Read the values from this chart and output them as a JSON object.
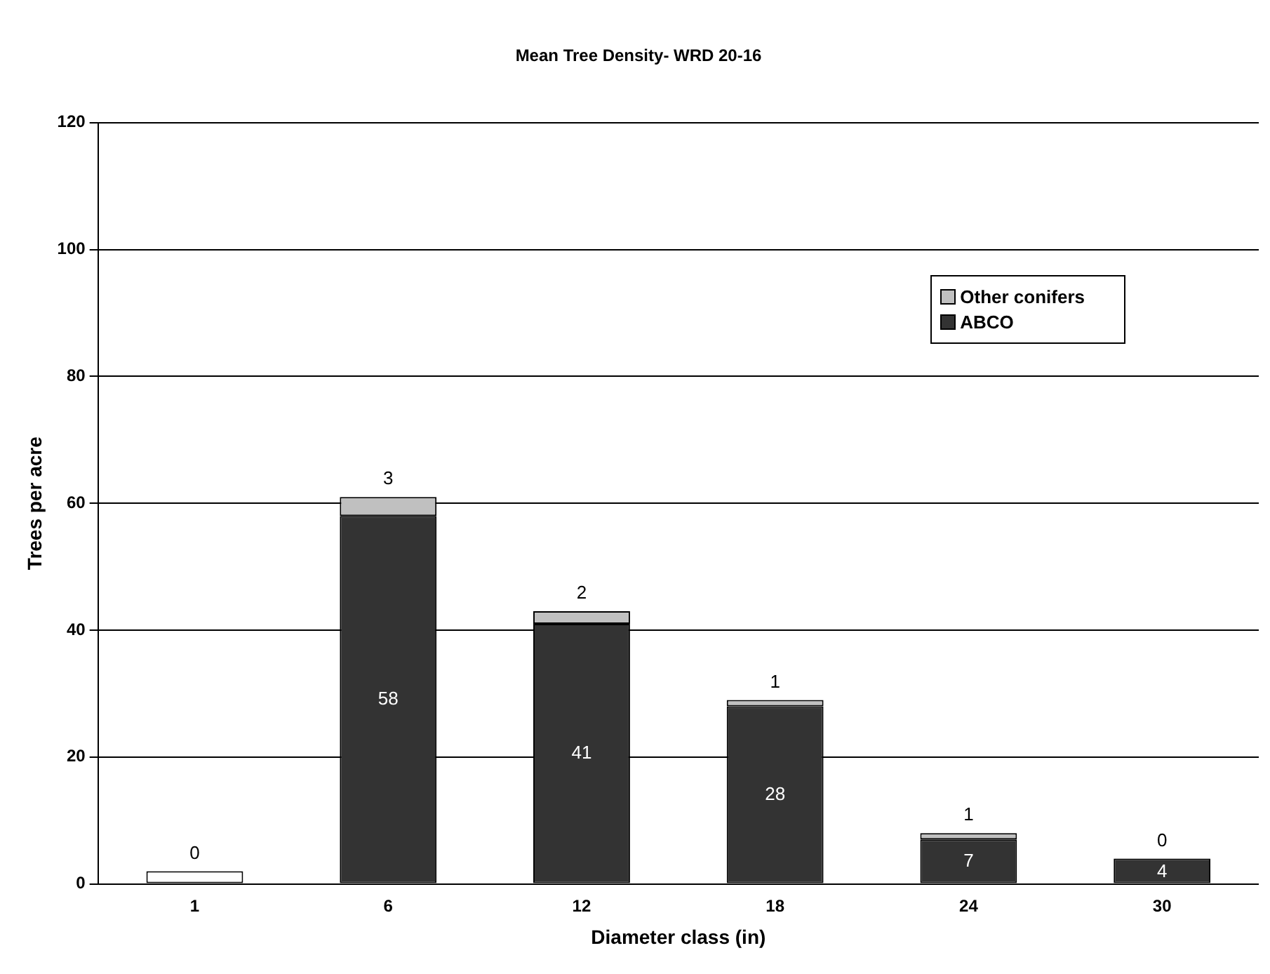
{
  "chart_data": {
    "type": "bar",
    "title": "Mean Tree Density- WRD 20-16",
    "xlabel": "Diameter class (in)",
    "ylabel": "Trees per acre",
    "categories": [
      "1",
      "6",
      "12",
      "18",
      "24",
      "30"
    ],
    "series": [
      {
        "name": "ABCO",
        "color": "#333333",
        "values": [
          null,
          58,
          41,
          28,
          7,
          4
        ],
        "value_labels": [
          null,
          "58",
          "41",
          "28",
          "7",
          "4"
        ]
      },
      {
        "color": "#ffffff",
        "values": [
          2,
          null,
          null,
          null,
          null,
          null
        ]
      },
      {
        "name": "Other conifers",
        "color": "#c0c0c0",
        "values": [
          0,
          3,
          2,
          1,
          1,
          0
        ],
        "value_labels": [
          "0",
          "3",
          "2",
          "1",
          "1",
          "0"
        ]
      }
    ],
    "stacked": true,
    "ylim": [
      0,
      120
    ],
    "yticks": [
      0,
      20,
      40,
      60,
      80,
      100,
      120
    ],
    "grid": "y",
    "legend": "top right"
  }
}
